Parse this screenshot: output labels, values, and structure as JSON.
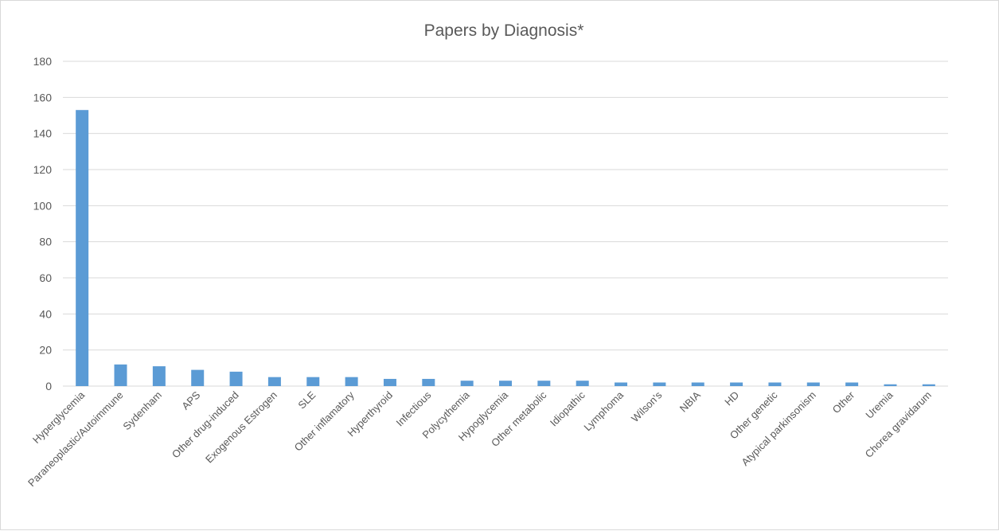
{
  "chart_data": {
    "type": "bar",
    "title": "Papers by Diagnosis*",
    "xlabel": "",
    "ylabel": "",
    "ylim": [
      0,
      180
    ],
    "yticks": [
      0,
      20,
      40,
      60,
      80,
      100,
      120,
      140,
      160,
      180
    ],
    "grid": true,
    "legend": "none",
    "color": "#5b9bd5",
    "categories": [
      "Hyperglycemia",
      "Paraneoplastic/Autoimmune",
      "Sydenham",
      "APS",
      "Other drug-induced",
      "Exogenous Estrogen",
      "SLE",
      "Other inflamatory",
      "Hyperthyroid",
      "Infectious",
      "Polycythemia",
      "Hypoglycemia",
      "Other metabolic",
      "Idiopathic",
      "Lymphoma",
      "Wilson's",
      "NBIA",
      "HD",
      "Other genetic",
      "Atypical parkinsonism",
      "Other",
      "Uremia",
      "Chorea gravidarum"
    ],
    "values": [
      153,
      12,
      11,
      9,
      8,
      5,
      5,
      5,
      4,
      4,
      3,
      3,
      3,
      3,
      2,
      2,
      2,
      2,
      2,
      2,
      2,
      1,
      1
    ]
  }
}
